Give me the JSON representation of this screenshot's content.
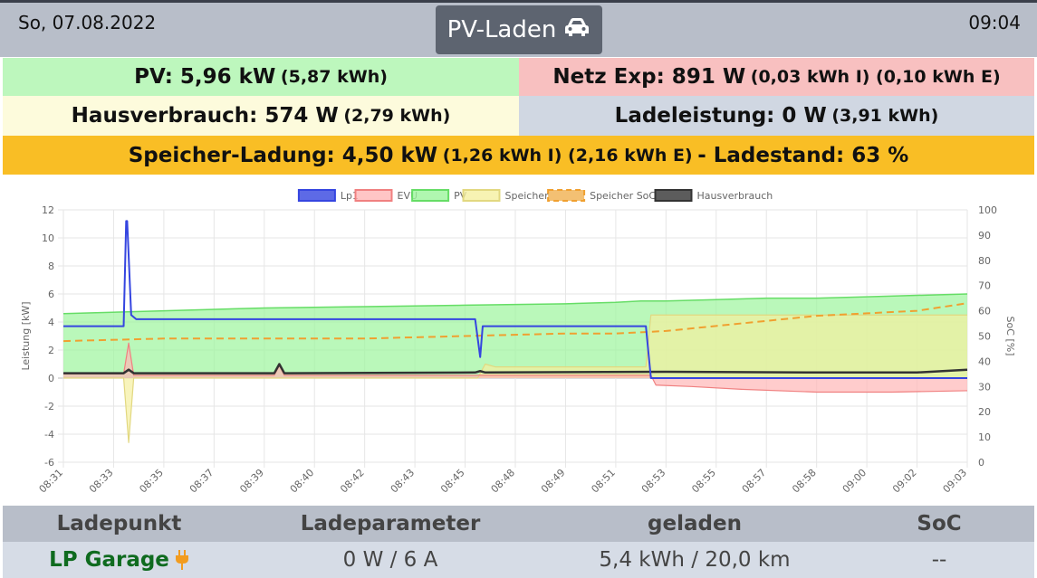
{
  "header": {
    "date": "So, 07.08.2022",
    "mode_label": "PV-Laden",
    "mode_icon": "car-icon",
    "time": "09:04"
  },
  "summary": {
    "pv": {
      "label": "PV: 5,96 kW",
      "detail": "(5,87 kWh)",
      "color": "#bdf7bd"
    },
    "grid": {
      "label": "Netz Exp: 891 W",
      "detail": "(0,03 kWh I) (0,10 kWh E)",
      "color": "#f8c0c0"
    },
    "house": {
      "label": "Hausverbrauch: 574 W",
      "detail": "(2,79 kWh)",
      "color": "#fdfbdc"
    },
    "charge": {
      "label": "Ladeleistung: 0 W",
      "detail": "(3,91 kWh)",
      "color": "#d0d7e2"
    },
    "storage": {
      "label": "Speicher-Ladung: 4,50 kW",
      "detail": "(1,26 kWh I) (2,16 kWh E)",
      "soc": "- Ladestand: 63 %",
      "color": "#f9be25"
    }
  },
  "chart_data": {
    "type": "line",
    "ylabel": "Leistung [kW]",
    "y2label": "SoC [%]",
    "ylim": [
      -6,
      12
    ],
    "y2lim": [
      0,
      100
    ],
    "yticks": [
      "12",
      "10",
      "8",
      "6",
      "4",
      "2",
      "0",
      "-2",
      "-4",
      "-6"
    ],
    "y2ticks": [
      "100",
      "90",
      "80",
      "70",
      "60",
      "50",
      "40",
      "30",
      "20",
      "10",
      "0"
    ],
    "grid": true,
    "legend_position": "top",
    "categories": [
      "08:31",
      "08:33",
      "08:35",
      "08:37",
      "08:39",
      "08:40",
      "08:42",
      "08:43",
      "08:45",
      "08:48",
      "08:49",
      "08:51",
      "08:53",
      "08:55",
      "08:57",
      "08:58",
      "09:00",
      "09:02",
      "09:03"
    ],
    "series": [
      {
        "name": "Lp1",
        "color": "#3545e0",
        "fill": "#3545e0",
        "x": [
          0,
          1.2,
          1.25,
          1.27,
          1.35,
          1.45,
          8.2,
          8.3,
          8.35,
          8.45,
          11.6,
          11.7,
          18
        ],
        "values": [
          3.7,
          3.7,
          11.2,
          11.2,
          4.5,
          4.2,
          4.2,
          1.5,
          3.7,
          3.7,
          3.7,
          0.0,
          0.0
        ]
      },
      {
        "name": "EVU",
        "color": "#f08080",
        "fill": "#ffb6b6",
        "x": [
          0,
          1.2,
          1.3,
          1.4,
          4.2,
          4.3,
          4.4,
          11.7,
          11.8,
          12.5,
          13.5,
          15,
          16.5,
          18
        ],
        "values": [
          0.3,
          0.3,
          2.5,
          0.2,
          0.2,
          0.9,
          0.2,
          0.2,
          -0.5,
          -0.6,
          -0.8,
          -1.0,
          -1.0,
          -0.9
        ]
      },
      {
        "name": "PV",
        "color": "#66dd66",
        "fill": "#9cf59c",
        "x": [
          0,
          2,
          4,
          6,
          8,
          10,
          11,
          11.5,
          12,
          13,
          14,
          15,
          16,
          17,
          18
        ],
        "values": [
          4.6,
          4.8,
          5.0,
          5.1,
          5.2,
          5.3,
          5.4,
          5.5,
          5.5,
          5.6,
          5.7,
          5.7,
          5.8,
          5.9,
          6.0
        ]
      },
      {
        "name": "Speicher",
        "color": "#e2d880",
        "fill": "#f5f0a0",
        "x": [
          0,
          1.2,
          1.3,
          1.4,
          8.25,
          8.4,
          8.6,
          11.6,
          11.7,
          12,
          18
        ],
        "values": [
          0.0,
          0.0,
          -4.6,
          0.0,
          0.0,
          1.0,
          0.8,
          0.8,
          4.5,
          4.5,
          4.5
        ]
      },
      {
        "name": "Speicher SoC",
        "color": "#f0a030",
        "fill": "#f0b050",
        "dashed": true,
        "axis": "right",
        "x": [
          0,
          2,
          4,
          6,
          8,
          10,
          11,
          12,
          13,
          14,
          15,
          16,
          17,
          18
        ],
        "values": [
          48,
          49,
          49,
          49,
          50,
          51,
          51,
          52,
          54,
          56,
          58,
          59,
          60,
          63
        ]
      },
      {
        "name": "Hausverbrauch",
        "color": "#333333",
        "fill": "#333333",
        "x": [
          0,
          1.2,
          1.3,
          1.4,
          4.2,
          4.3,
          4.4,
          8.2,
          8.3,
          8.4,
          12,
          15,
          17,
          18
        ],
        "values": [
          0.35,
          0.35,
          0.6,
          0.35,
          0.35,
          1.0,
          0.35,
          0.4,
          0.5,
          0.4,
          0.45,
          0.4,
          0.4,
          0.6
        ]
      }
    ]
  },
  "table": {
    "headers": [
      "Ladepunkt",
      "Ladeparameter",
      "geladen",
      "SoC"
    ],
    "rows": [
      {
        "name": "LP Garage",
        "status_icon": "plug-icon",
        "param": "0 W / 6 A",
        "charged": "5,4 kWh / 20,0 km",
        "soc": "--"
      }
    ]
  }
}
